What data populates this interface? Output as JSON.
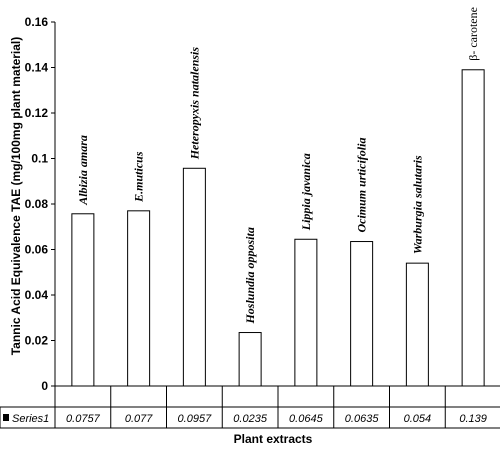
{
  "chart_data": {
    "type": "bar",
    "categories": [
      "Albizia amara",
      "E.muticus",
      "Heteropyxis natalensis",
      "Hoslundia opposita",
      "Lippia javanica",
      "Ocimum urticifolia",
      "Warburgia salutaris",
      "β- carotene"
    ],
    "series": [
      {
        "name": "Series1",
        "values": [
          0.0757,
          0.077,
          0.0957,
          0.0235,
          0.0645,
          0.0635,
          0.054,
          0.139
        ]
      }
    ],
    "table_values": [
      "0.0757",
      "0.077",
      "0.0957",
      "0.0235",
      "0.0645",
      "0.0635",
      "0.054",
      "0.139"
    ],
    "xlabel": "Plant extracts",
    "ylabel": "Tannic Acid Equivalence TAE (mg/100mg plant material)",
    "ylim": [
      0,
      0.16
    ],
    "yticks": [
      "0",
      "0.02",
      "0.04",
      "0.06",
      "0.08",
      "0.1",
      "0.12",
      "0.14",
      "0.16"
    ],
    "grid": false,
    "legend": "data table (left of row)",
    "colors": {
      "bar_fill": "#ffffff",
      "bar_stroke": "#000000",
      "legend_key": "#000000"
    }
  }
}
